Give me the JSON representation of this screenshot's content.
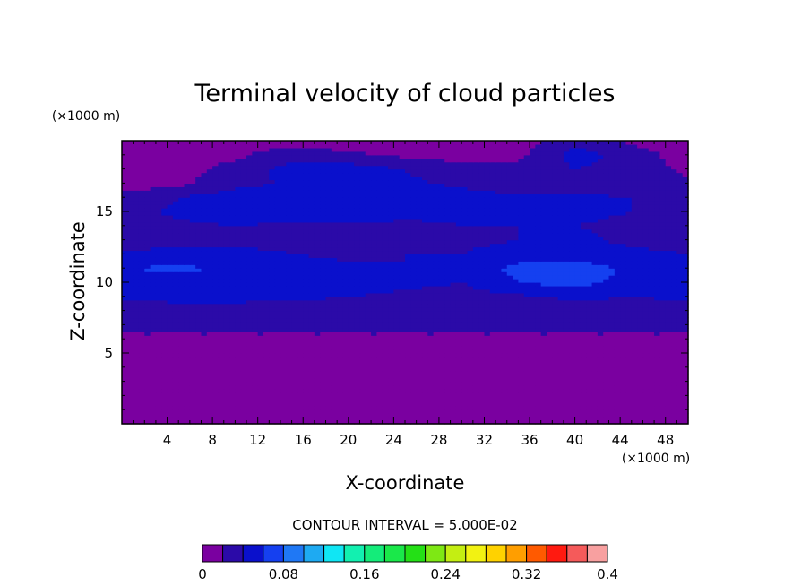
{
  "chart_data": {
    "type": "heatmap",
    "title": "Terminal velocity of cloud particles",
    "xlabel": "X-coordinate",
    "ylabel": "Z-coordinate",
    "x_unit": "(×1000 m)",
    "y_unit": "(×1000 m)",
    "xlim": [
      0,
      50
    ],
    "ylim": [
      0,
      20
    ],
    "x_ticks": [
      "4",
      "8",
      "12",
      "16",
      "20",
      "24",
      "28",
      "32",
      "36",
      "40",
      "44",
      "48"
    ],
    "y_ticks": [
      "5",
      "10",
      "15"
    ],
    "contour_interval_text": "CONTOUR INTERVAL = 5.000E-02",
    "colorbar": {
      "min": 0,
      "max": 0.4,
      "step": 0.025,
      "tick_labels": [
        "0",
        "0.08",
        "0.16",
        "0.24",
        "0.32",
        "0.4"
      ],
      "colors": [
        "#7a00a0",
        "#2b0aa8",
        "#0a10cc",
        "#1540f0",
        "#1f78f5",
        "#1eaaf2",
        "#10e6f4",
        "#12f0b0",
        "#14ec7a",
        "#1ae84a",
        "#24e016",
        "#7ee814",
        "#c4ee12",
        "#f2f212",
        "#ffd200",
        "#ff9e00",
        "#ff5a00",
        "#ff1a10",
        "#f55a5a",
        "#f8a0a0"
      ]
    },
    "z_levels": [
      0.0,
      2.0,
      4.0,
      6.0,
      6.5,
      7.0,
      8.0,
      9.0,
      10.0,
      11.0,
      12.0,
      13.0,
      14.0,
      15.0,
      16.0,
      17.0,
      18.0,
      19.0,
      20.0
    ],
    "x_samples": [
      0,
      5,
      10,
      15,
      20,
      25,
      30,
      35,
      40,
      45,
      50
    ],
    "field": [
      [
        0.01,
        0.01,
        0.01,
        0.01,
        0.01,
        0.01,
        0.01,
        0.01,
        0.01,
        0.01,
        0.01
      ],
      [
        0.01,
        0.01,
        0.01,
        0.01,
        0.01,
        0.01,
        0.01,
        0.01,
        0.01,
        0.01,
        0.01
      ],
      [
        0.01,
        0.01,
        0.01,
        0.01,
        0.01,
        0.01,
        0.01,
        0.01,
        0.01,
        0.01,
        0.01
      ],
      [
        0.01,
        0.01,
        0.01,
        0.01,
        0.01,
        0.01,
        0.01,
        0.01,
        0.01,
        0.01,
        0.01
      ],
      [
        0.03,
        0.03,
        0.03,
        0.03,
        0.03,
        0.03,
        0.03,
        0.03,
        0.03,
        0.03,
        0.03
      ],
      [
        0.03,
        0.03,
        0.03,
        0.03,
        0.03,
        0.03,
        0.03,
        0.03,
        0.03,
        0.03,
        0.03
      ],
      [
        0.035,
        0.035,
        0.035,
        0.035,
        0.035,
        0.035,
        0.035,
        0.035,
        0.035,
        0.035,
        0.035
      ],
      [
        0.055,
        0.06,
        0.06,
        0.055,
        0.05,
        0.045,
        0.04,
        0.045,
        0.055,
        0.05,
        0.055
      ],
      [
        0.06,
        0.065,
        0.07,
        0.065,
        0.06,
        0.055,
        0.05,
        0.075,
        0.085,
        0.065,
        0.06
      ],
      [
        0.075,
        0.08,
        0.07,
        0.06,
        0.055,
        0.05,
        0.055,
        0.085,
        0.09,
        0.07,
        0.06
      ],
      [
        0.055,
        0.06,
        0.055,
        0.05,
        0.045,
        0.05,
        0.05,
        0.06,
        0.065,
        0.055,
        0.05
      ],
      [
        0.035,
        0.04,
        0.045,
        0.045,
        0.04,
        0.045,
        0.045,
        0.05,
        0.055,
        0.045,
        0.04
      ],
      [
        0.03,
        0.045,
        0.05,
        0.045,
        0.04,
        0.04,
        0.05,
        0.05,
        0.05,
        0.045,
        0.04
      ],
      [
        0.04,
        0.055,
        0.06,
        0.07,
        0.075,
        0.065,
        0.055,
        0.05,
        0.055,
        0.05,
        0.05
      ],
      [
        0.035,
        0.05,
        0.065,
        0.075,
        0.07,
        0.065,
        0.06,
        0.055,
        0.055,
        0.05,
        0.045
      ],
      [
        0.01,
        0.02,
        0.04,
        0.055,
        0.06,
        0.055,
        0.045,
        0.035,
        0.04,
        0.035,
        0.03
      ],
      [
        0.01,
        0.015,
        0.035,
        0.06,
        0.065,
        0.05,
        0.035,
        0.03,
        0.05,
        0.04,
        0.02
      ],
      [
        0.01,
        0.01,
        0.02,
        0.04,
        0.03,
        0.02,
        0.015,
        0.02,
        0.06,
        0.04,
        0.01
      ],
      [
        0.01,
        0.01,
        0.01,
        0.015,
        0.01,
        0.01,
        0.01,
        0.01,
        0.045,
        0.02,
        0.01
      ]
    ]
  }
}
